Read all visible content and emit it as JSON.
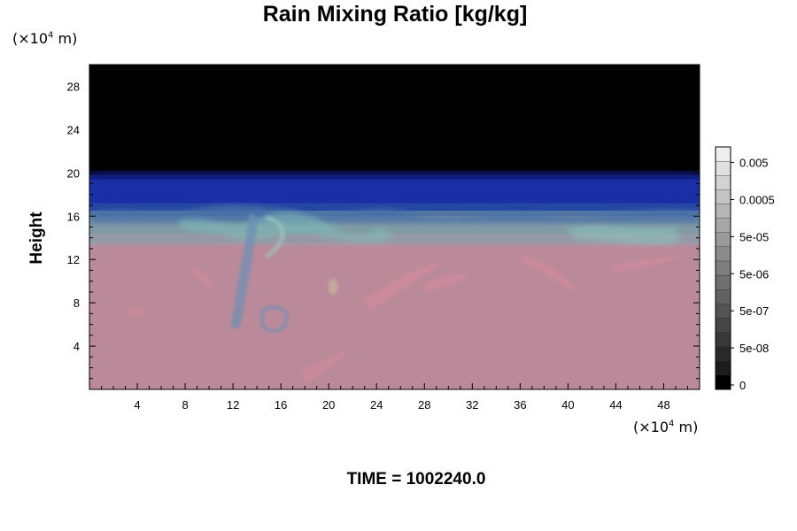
{
  "chart_data": {
    "type": "heatmap",
    "title": "Rain Mixing Ratio [kg/kg]",
    "ylabel": "Height",
    "xlabel": "",
    "x_unit": "(×10⁴ m)",
    "y_unit": "(×10⁴ m)",
    "xlim": [
      0,
      51
    ],
    "ylim": [
      0,
      30
    ],
    "x_ticks": [
      4,
      8,
      12,
      16,
      20,
      24,
      28,
      32,
      36,
      40,
      44,
      48
    ],
    "y_ticks": [
      4,
      8,
      12,
      16,
      20,
      24,
      28
    ],
    "colorbar": {
      "range": [
        0,
        0.05
      ],
      "labels": [
        "0",
        "5e-08",
        "5e-07",
        "5e-06",
        "5e-05",
        "0.0005",
        "0.005"
      ]
    },
    "layers": [
      {
        "from": 0,
        "to": 13.5,
        "color": "#bb8a9a"
      },
      {
        "from": 13.5,
        "to": 16.5,
        "color": "#7f9aa4"
      },
      {
        "from": 16.5,
        "to": 19.8,
        "color": "#1a2fa6"
      },
      {
        "from": 19.8,
        "to": 30,
        "color": "#000000"
      }
    ],
    "grid": false,
    "legend": "colorbar-right"
  },
  "footer": {
    "time_label": "TIME = 1002240.0"
  }
}
